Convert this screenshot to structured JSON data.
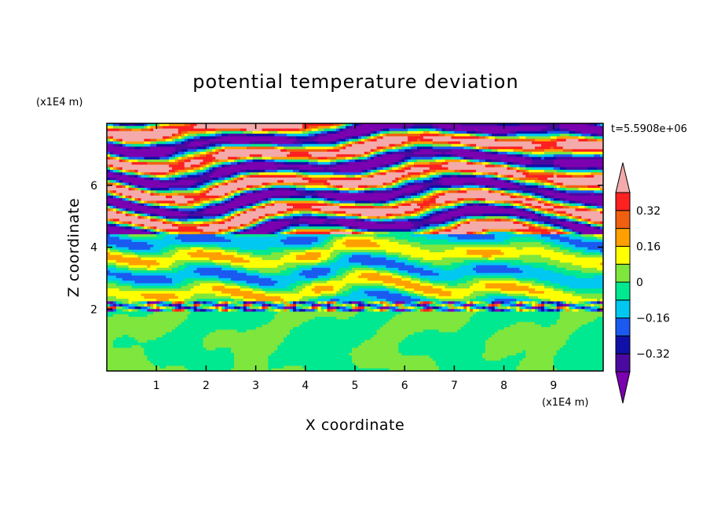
{
  "chart_data": {
    "type": "heatmap",
    "title": "potential temperature deviation",
    "xlabel": "X coordinate",
    "ylabel": "Z coordinate",
    "x_unit": "(x1E4 m)",
    "y_unit": "(x1E4 m)",
    "time_label": "t=5.5908e+06",
    "xlim": [
      0,
      10
    ],
    "ylim": [
      0,
      8
    ],
    "x_ticks": [
      "1",
      "2",
      "3",
      "4",
      "5",
      "6",
      "7",
      "8",
      "9"
    ],
    "y_ticks": [
      "2",
      "4",
      "6"
    ],
    "grid": false,
    "colorbar": {
      "placement": "right",
      "levels": [
        -0.48,
        -0.4,
        -0.32,
        -0.24,
        -0.16,
        -0.08,
        0,
        0.08,
        0.16,
        0.24,
        0.32,
        0.4,
        0.48
      ],
      "colors": [
        "#7a00b0",
        "#4a0aa0",
        "#1010a8",
        "#1a5af0",
        "#00c8f0",
        "#00e890",
        "#7ee63c",
        "#ffff00",
        "#ffa000",
        "#f06010",
        "#ff2020",
        "#f4aaaa"
      ],
      "tick_labels": [
        "0.32",
        "0.16",
        "0",
        "-0.16",
        "-0.32"
      ],
      "tick_values": [
        0.32,
        0.16,
        0,
        -0.16,
        -0.32
      ],
      "extend": "both"
    },
    "bands": [
      {
        "z0": 0.0,
        "z1": 2.0,
        "value": 0.0,
        "description": "lower layer green mottled"
      },
      {
        "z0": 2.0,
        "z1": 2.2,
        "value": -0.32
      },
      {
        "z0": 2.2,
        "z1": 4.5,
        "value": 0.0
      },
      {
        "z0": 4.5,
        "z1": 7.9,
        "value": 0.4,
        "alternating": true
      }
    ]
  }
}
